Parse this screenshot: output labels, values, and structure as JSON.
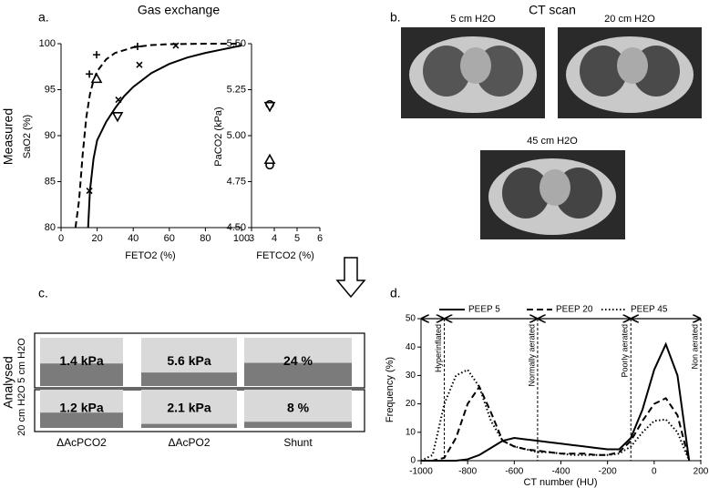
{
  "figure": {
    "panel_labels": [
      "a.",
      "b.",
      "c.",
      "d."
    ],
    "titles": [
      "Gas exchange",
      "CT scan"
    ],
    "row_labels": [
      "Measured",
      "Analysed"
    ]
  },
  "ct_scan": {
    "images": [
      "5 cm H2O",
      "20 cm H2O",
      "45 cm H2O"
    ]
  },
  "chart_data": [
    {
      "type": "line",
      "xlabel": "FETO2 (%)",
      "ylabel": "SaO2 (%)",
      "xlim": [
        0,
        100
      ],
      "xticks": [
        0,
        20,
        40,
        60,
        80,
        100
      ],
      "ylim": [
        80,
        100
      ],
      "yticks": [
        80,
        85,
        90,
        95,
        100
      ],
      "series": [
        {
          "color": "#000000",
          "style": "dashed",
          "marker": "none",
          "x": [
            8,
            10,
            12,
            14,
            16,
            18,
            20,
            25,
            30,
            40,
            50,
            60,
            80,
            100
          ],
          "values": [
            80,
            83,
            88,
            92,
            94.5,
            96,
            97,
            98.3,
            99,
            99.6,
            99.85,
            99.95,
            100,
            100
          ]
        },
        {
          "color": "#000000",
          "style": "solid",
          "marker": "none",
          "x": [
            15,
            16,
            18,
            20,
            25,
            30,
            35,
            40,
            50,
            60,
            70,
            80,
            90,
            100
          ],
          "values": [
            80,
            84,
            87.5,
            89.5,
            91.5,
            93,
            94.3,
            95.3,
            96.8,
            97.8,
            98.5,
            99,
            99.4,
            99.8
          ]
        },
        {
          "color": "#000000",
          "style": "none",
          "marker": "plus",
          "x": [
            15.7,
            19.7,
            42.4
          ],
          "values": [
            96.7,
            98.8,
            99.7
          ]
        },
        {
          "color": "#000000",
          "style": "none",
          "marker": "cross",
          "x": [
            15.7,
            31.8,
            43.4,
            63.6
          ],
          "values": [
            84,
            93.9,
            97.7,
            99.8
          ]
        },
        {
          "color": "#000000",
          "style": "none",
          "marker": "triangle-up",
          "x": [
            19.7
          ],
          "values": [
            96.2
          ]
        },
        {
          "color": "#000000",
          "style": "none",
          "marker": "triangle-down",
          "x": [
            31.3
          ],
          "values": [
            92.1
          ]
        }
      ]
    },
    {
      "type": "line",
      "xlabel": "FETCO2 (%)",
      "ylabel": "PaCO2 (kPa)",
      "xlim": [
        3,
        6
      ],
      "xticks": [
        3,
        4,
        5,
        6
      ],
      "ylim": [
        4.5,
        5.5
      ],
      "yticks": [
        {
          "value": 4.5,
          "label": "4.50"
        },
        {
          "value": 4.75,
          "label": "4.75"
        },
        {
          "value": 5,
          "label": "5.00"
        },
        {
          "value": 5.25,
          "label": "5.25"
        },
        {
          "value": 5.5,
          "label": "5.50"
        }
      ],
      "series": [
        {
          "color": "#000000",
          "style": "none",
          "marker": "circle",
          "x": [
            3.8,
            3.8
          ],
          "values": [
            5.17,
            4.84
          ]
        },
        {
          "color": "#000000",
          "style": "none",
          "marker": "triangle-down",
          "x": [
            3.8
          ],
          "values": [
            5.16
          ]
        },
        {
          "color": "#000000",
          "style": "none",
          "marker": "triangle-up",
          "x": [
            3.8
          ],
          "values": [
            4.87
          ]
        }
      ]
    },
    {
      "type": "fill-bar",
      "categories": [
        "ΔAcPCO2",
        "ΔAcPO2",
        "Shunt"
      ],
      "ylims": [
        [
          0,
          3
        ],
        [
          0,
          20
        ],
        [
          0,
          50
        ]
      ],
      "color": "#7b7b7b",
      "background": "#d9d9d9",
      "series": [
        {
          "name": "5 cm H2O",
          "values": [
            1.4,
            5.6,
            24
          ],
          "value_labels": [
            "1.4 kPa",
            "5.6 kPa",
            "24 %"
          ]
        },
        {
          "name": "20 cm H2O",
          "values": [
            1.2,
            2.1,
            8
          ],
          "value_labels": [
            "1.2 kPa",
            "2.1 kPa",
            "8 %"
          ]
        }
      ]
    },
    {
      "type": "line",
      "xlabel": "CT number (HU)",
      "ylabel": "Frequency (%)",
      "xlim": [
        -1000,
        200
      ],
      "xticks": [
        -1000,
        -800,
        -600,
        -400,
        -200,
        0,
        200
      ],
      "ylim": [
        0,
        50
      ],
      "yticks": [
        0,
        10,
        20,
        30,
        40,
        50
      ],
      "x": [
        -1000,
        -950,
        -900,
        -850,
        -800,
        -750,
        -700,
        -650,
        -600,
        -550,
        -500,
        -450,
        -400,
        -350,
        -300,
        -250,
        -200,
        -150,
        -100,
        -50,
        0,
        50,
        100,
        150
      ],
      "series": [
        {
          "name": "PEEP 5",
          "color": "#000000",
          "style": "solid",
          "values": [
            0,
            0,
            0,
            0,
            0.5,
            2,
            4.5,
            7,
            8,
            7.5,
            7,
            6.5,
            6,
            5.5,
            5,
            4.5,
            4,
            4,
            8,
            18,
            32,
            41,
            30,
            0
          ]
        },
        {
          "name": "PEEP 20",
          "color": "#000000",
          "style": "dashed",
          "values": [
            0,
            0,
            1,
            8,
            20,
            26,
            17,
            7,
            5,
            4,
            3.5,
            3,
            2.5,
            2.5,
            2.5,
            2,
            2,
            3,
            7,
            14,
            20,
            22,
            16,
            0
          ]
        },
        {
          "name": "PEEP 45",
          "color": "#000000",
          "style": "dotted",
          "values": [
            0,
            2,
            20,
            30,
            32,
            26,
            14,
            7,
            5,
            4,
            3,
            3,
            2.5,
            2,
            2,
            2,
            2,
            2.5,
            5,
            10,
            14,
            14.5,
            10,
            0
          ]
        }
      ],
      "legend": "top",
      "regions": [
        {
          "label": "Hyperinflated",
          "from": -1000,
          "to": -900
        },
        {
          "label": "Normally aerated",
          "from": -900,
          "to": -500
        },
        {
          "label": "Poorly aerated",
          "from": -500,
          "to": -100
        },
        {
          "label": "Non aerated",
          "from": -100,
          "to": 200
        }
      ]
    }
  ]
}
